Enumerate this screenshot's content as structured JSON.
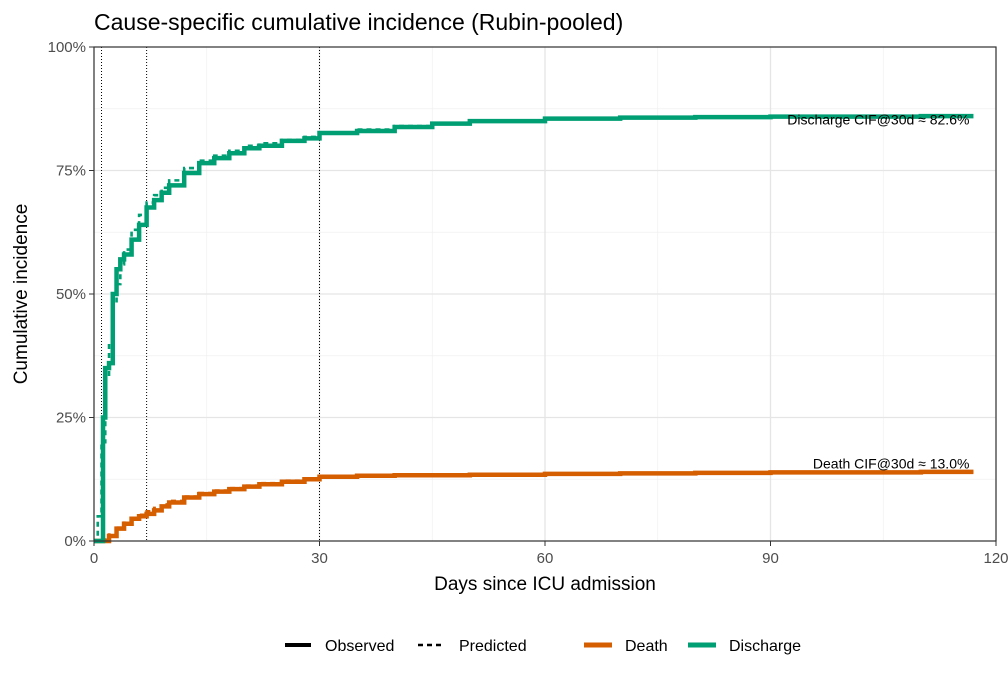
{
  "chart_data": {
    "type": "line",
    "title": "Cause-specific cumulative incidence (Rubin-pooled)",
    "xlabel": "Days since ICU admission",
    "ylabel": "Cumulative incidence",
    "xlim": [
      0,
      120
    ],
    "ylim": [
      0,
      1
    ],
    "x_ticks": [
      0,
      30,
      60,
      90,
      120
    ],
    "x_tick_labels": [
      "0",
      "30",
      "60",
      "90",
      "120"
    ],
    "y_ticks": [
      0,
      0.25,
      0.5,
      0.75,
      1
    ],
    "y_tick_labels": [
      "0%",
      "25%",
      "50%",
      "75%",
      "100%"
    ],
    "grid": true,
    "reference_lines_x": [
      1,
      7,
      30
    ],
    "legend_position": "bottom",
    "legend": {
      "linetype": [
        {
          "label": "Observed",
          "style": "solid"
        },
        {
          "label": "Predicted",
          "style": "dashed"
        }
      ],
      "color": [
        {
          "label": "Death",
          "color": "#D55E00"
        },
        {
          "label": "Discharge",
          "color": "#009E73"
        }
      ]
    },
    "annotations": [
      {
        "text": "Discharge CIF@30d ≈ 82.6%",
        "x": 117,
        "y": 0.853
      },
      {
        "text": "Death CIF@30d ≈ 13.0%",
        "x": 117,
        "y": 0.157
      }
    ],
    "series": [
      {
        "name": "Discharge",
        "kind": "Observed",
        "color": "#009E73",
        "style": "solid",
        "x": [
          0,
          1,
          1.2,
          1.5,
          2,
          2.5,
          3,
          3.5,
          4,
          5,
          6,
          7,
          8,
          9,
          10,
          12,
          14,
          16,
          18,
          20,
          22,
          25,
          28,
          30,
          35,
          40,
          45,
          50,
          60,
          70,
          80,
          90,
          100,
          110,
          117
        ],
        "y": [
          0,
          0,
          0.25,
          0.35,
          0.36,
          0.5,
          0.55,
          0.57,
          0.58,
          0.61,
          0.64,
          0.675,
          0.69,
          0.705,
          0.72,
          0.745,
          0.765,
          0.775,
          0.785,
          0.795,
          0.8,
          0.81,
          0.815,
          0.826,
          0.83,
          0.838,
          0.845,
          0.85,
          0.855,
          0.857,
          0.858,
          0.859,
          0.859,
          0.86,
          0.86
        ]
      },
      {
        "name": "Discharge",
        "kind": "Predicted",
        "color": "#009E73",
        "style": "dashed",
        "x": [
          0,
          0.5,
          1,
          1.5,
          2,
          2.5,
          3,
          3.5,
          4,
          5,
          6,
          7,
          8,
          9,
          10,
          12,
          14,
          16,
          18,
          20,
          22,
          25,
          28,
          30,
          35,
          40,
          45,
          50,
          60,
          70,
          80,
          90,
          100,
          110,
          117
        ],
        "y": [
          0,
          0.05,
          0.2,
          0.33,
          0.4,
          0.48,
          0.52,
          0.56,
          0.59,
          0.63,
          0.66,
          0.685,
          0.7,
          0.715,
          0.73,
          0.755,
          0.77,
          0.78,
          0.79,
          0.8,
          0.805,
          0.812,
          0.818,
          0.826,
          0.833,
          0.84,
          0.846,
          0.85,
          0.855,
          0.857,
          0.858,
          0.859,
          0.859,
          0.86,
          0.86
        ]
      },
      {
        "name": "Death",
        "kind": "Observed",
        "color": "#D55E00",
        "style": "solid",
        "x": [
          0,
          1,
          2,
          3,
          4,
          5,
          6,
          7,
          8,
          9,
          10,
          12,
          14,
          16,
          18,
          20,
          22,
          25,
          28,
          30,
          35,
          40,
          50,
          60,
          70,
          80,
          90,
          100,
          110,
          117
        ],
        "y": [
          0,
          0,
          0.01,
          0.025,
          0.035,
          0.045,
          0.05,
          0.055,
          0.062,
          0.07,
          0.078,
          0.088,
          0.095,
          0.1,
          0.105,
          0.11,
          0.115,
          0.12,
          0.125,
          0.13,
          0.132,
          0.133,
          0.134,
          0.136,
          0.137,
          0.138,
          0.139,
          0.139,
          0.14,
          0.14
        ]
      },
      {
        "name": "Death",
        "kind": "Predicted",
        "color": "#D55E00",
        "style": "dashed",
        "x": [
          0,
          1,
          2,
          3,
          4,
          5,
          6,
          7,
          8,
          9,
          10,
          12,
          14,
          16,
          18,
          20,
          22,
          25,
          28,
          30,
          35,
          40,
          50,
          60,
          70,
          80,
          90,
          100,
          110,
          117
        ],
        "y": [
          0,
          0.003,
          0.013,
          0.027,
          0.037,
          0.047,
          0.053,
          0.06,
          0.067,
          0.074,
          0.081,
          0.09,
          0.097,
          0.102,
          0.107,
          0.112,
          0.117,
          0.122,
          0.126,
          0.13,
          0.132,
          0.133,
          0.134,
          0.136,
          0.137,
          0.138,
          0.139,
          0.139,
          0.14,
          0.14
        ]
      }
    ]
  }
}
